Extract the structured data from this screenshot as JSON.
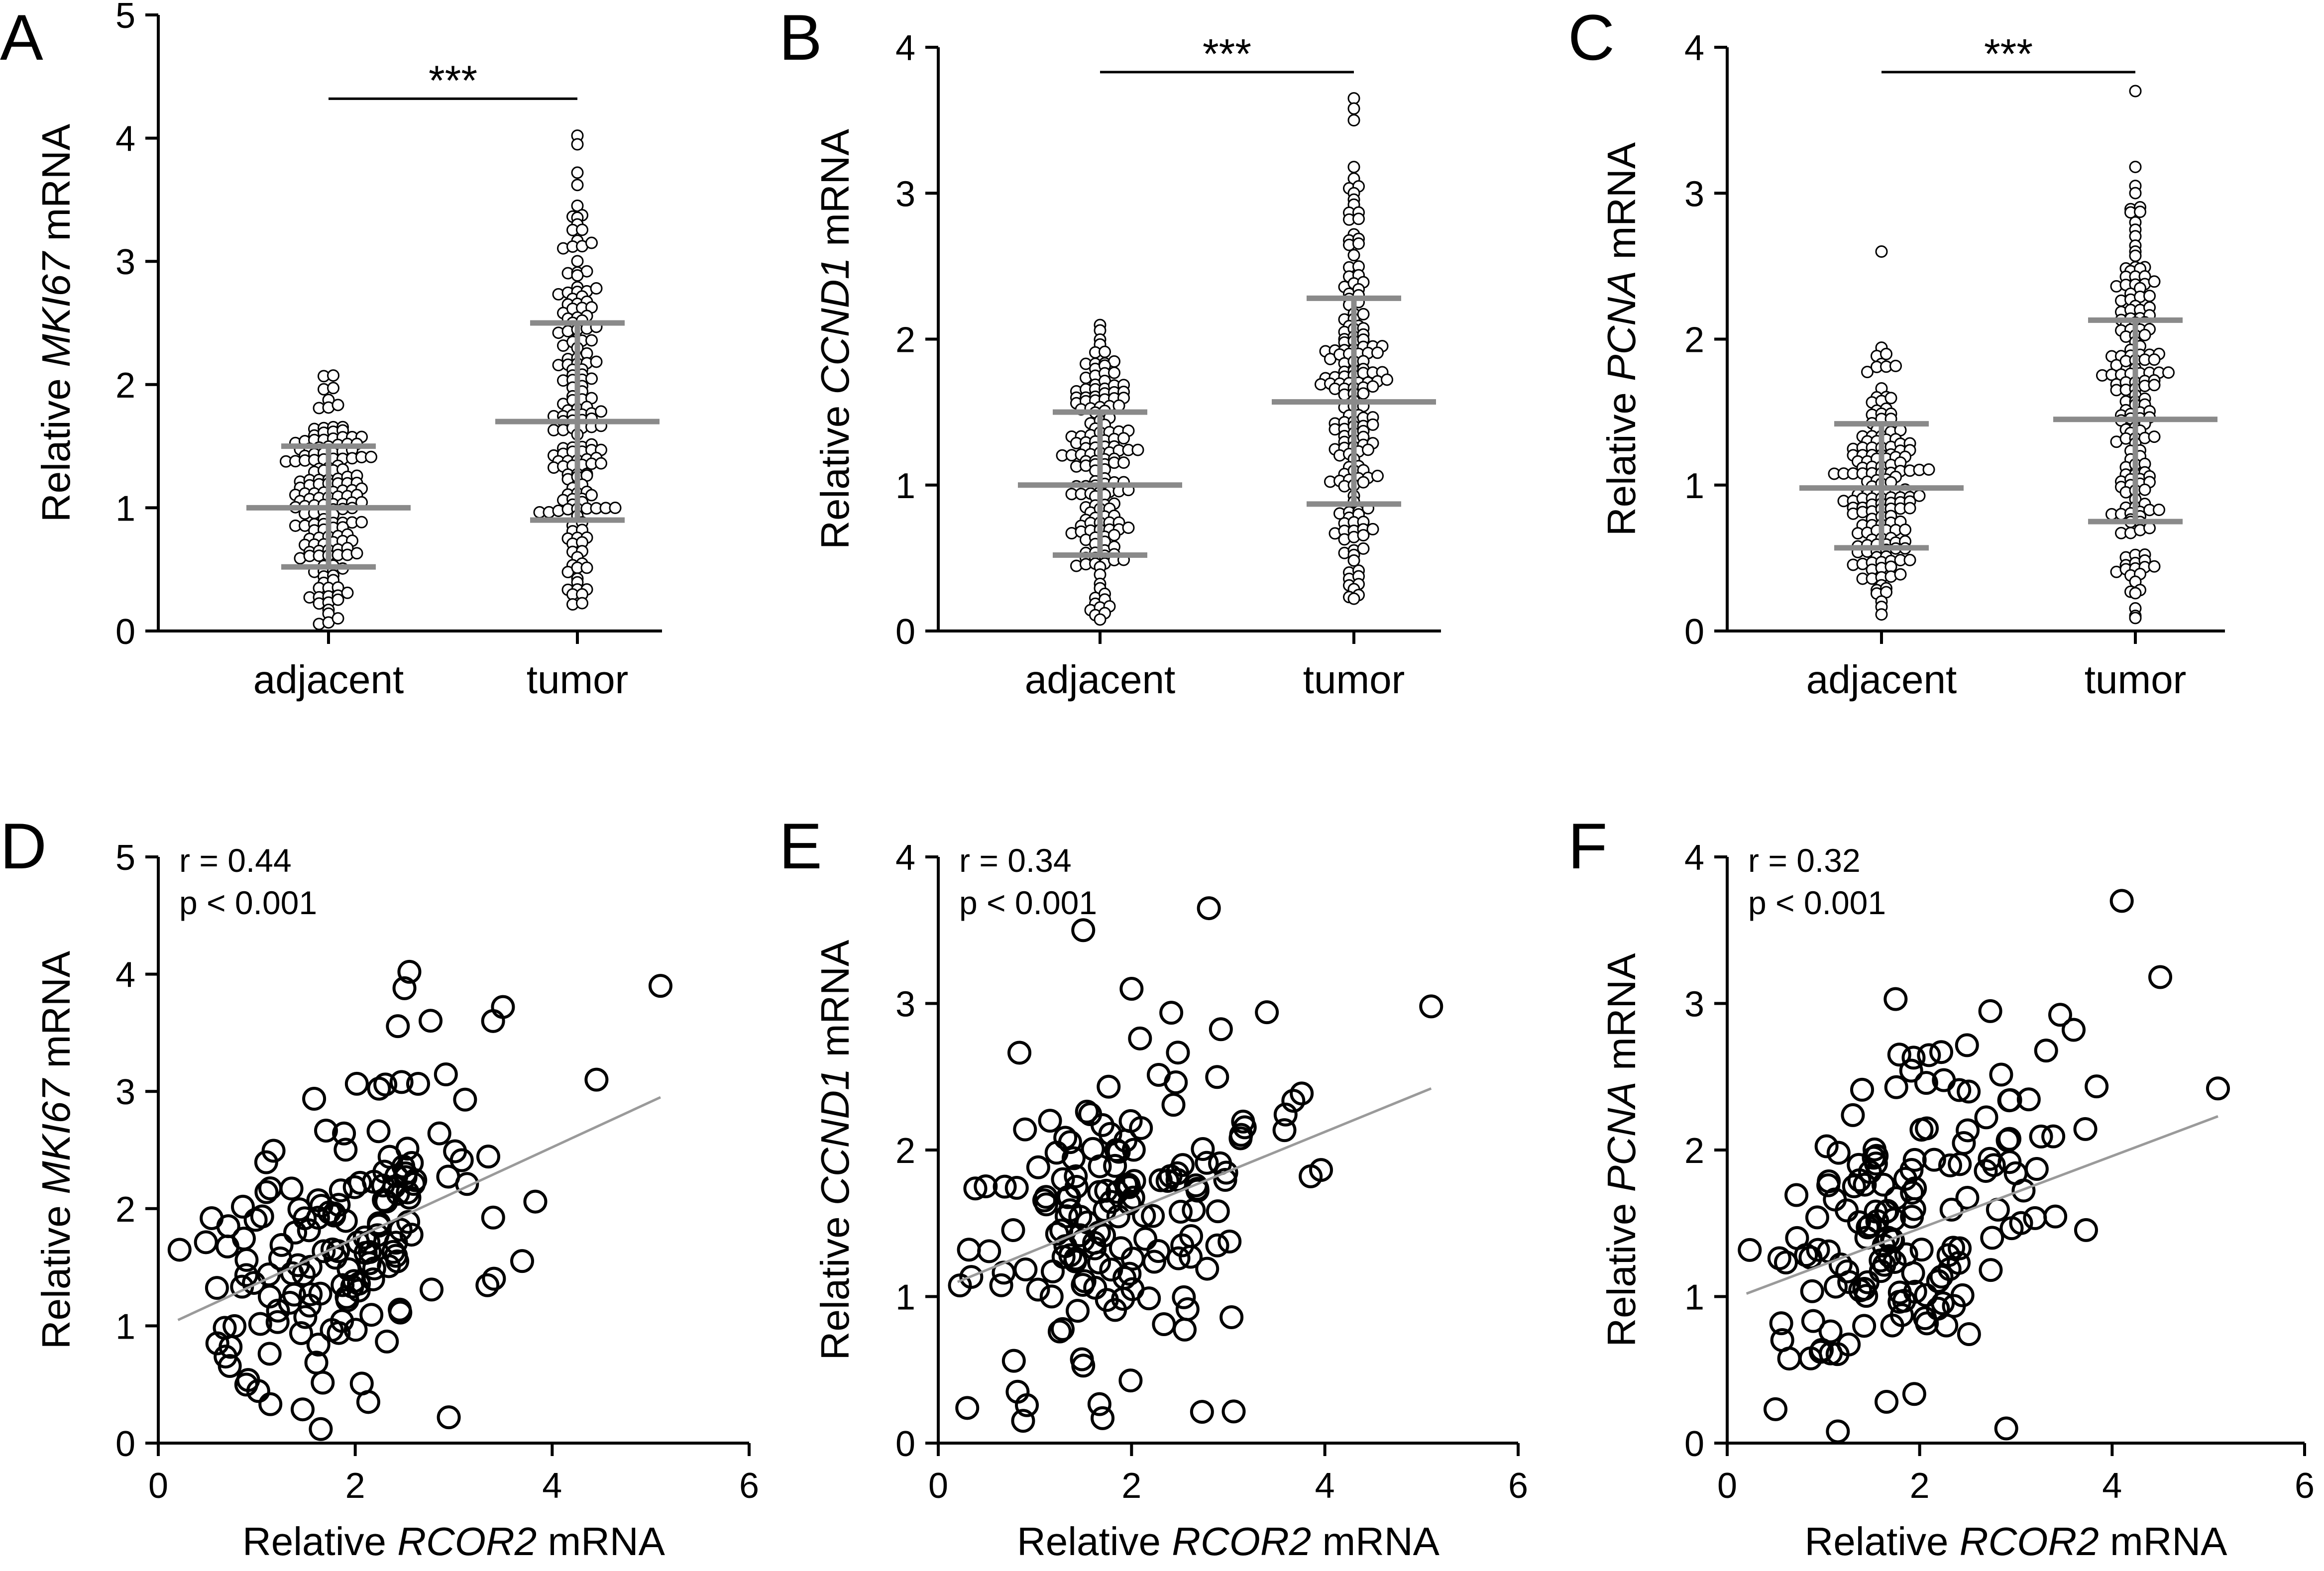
{
  "figure": {
    "description_hidden": false
  },
  "colors": {
    "summary_line": "#8a8a8a",
    "fit_line": "#9a9a9a",
    "points": "#000000"
  },
  "chart_data": [
    {
      "id": "A",
      "type": "scatter",
      "subtype": "dot-plot",
      "panel_letter": "A",
      "ylabel": {
        "prefix": "Relative ",
        "gene": "MKI67",
        "suffix": " mRNA"
      },
      "ylim": [
        0,
        5
      ],
      "yticks": [
        0,
        1,
        2,
        3,
        4,
        5
      ],
      "yticklabels": [
        "0",
        "1",
        "2",
        "3",
        "4",
        "5"
      ],
      "categories": [
        "adjacent",
        "tumor"
      ],
      "groups": [
        {
          "name": "adjacent",
          "mean": 1.0,
          "sd_low": 0.52,
          "sd_high": 1.5,
          "n": 160,
          "max": 2.22,
          "min": 0.03
        },
        {
          "name": "tumor",
          "mean": 1.7,
          "sd_low": 0.9,
          "sd_high": 2.5,
          "n": 170,
          "max": 4.02,
          "min": 0.15,
          "outliers": [
            4.02,
            3.95,
            3.72,
            3.62,
            3.15,
            3.12
          ]
        }
      ],
      "significance": "***"
    },
    {
      "id": "B",
      "type": "scatter",
      "subtype": "dot-plot",
      "panel_letter": "B",
      "ylabel": {
        "prefix": "Relative ",
        "gene": "CCND1",
        "suffix": " mRNA"
      },
      "ylim": [
        0,
        4
      ],
      "yticks": [
        0,
        1,
        2,
        3,
        4
      ],
      "yticklabels": [
        "0",
        "1",
        "2",
        "3",
        "4"
      ],
      "categories": [
        "adjacent",
        "tumor"
      ],
      "groups": [
        {
          "name": "adjacent",
          "mean": 1.0,
          "sd_low": 0.52,
          "sd_high": 1.5,
          "n": 160,
          "max": 2.26,
          "min": 0.06
        },
        {
          "name": "tumor",
          "mean": 1.57,
          "sd_low": 0.87,
          "sd_high": 2.28,
          "n": 170,
          "max": 3.65,
          "min": 0.18,
          "outliers": [
            3.65,
            3.58,
            3.5,
            3.1,
            3.0
          ]
        }
      ],
      "significance": "***"
    },
    {
      "id": "C",
      "type": "scatter",
      "subtype": "dot-plot",
      "panel_letter": "C",
      "ylabel": {
        "prefix": "Relative ",
        "gene": "PCNA",
        "suffix": " mRNA"
      },
      "ylim": [
        0,
        4
      ],
      "yticks": [
        0,
        1,
        2,
        3,
        4
      ],
      "yticklabels": [
        "0",
        "1",
        "2",
        "3",
        "4"
      ],
      "categories": [
        "adjacent",
        "tumor"
      ],
      "groups": [
        {
          "name": "adjacent",
          "mean": 0.98,
          "sd_low": 0.57,
          "sd_high": 1.42,
          "n": 160,
          "max": 2.6,
          "min": 0.1,
          "outliers": [
            2.6
          ]
        },
        {
          "name": "tumor",
          "mean": 1.45,
          "sd_low": 0.75,
          "sd_high": 2.13,
          "n": 170,
          "max": 3.7,
          "min": 0.08,
          "outliers": [
            3.7,
            3.18,
            3.05,
            2.8,
            2.75
          ]
        }
      ],
      "significance": "***"
    },
    {
      "id": "D",
      "type": "scatter",
      "subtype": "correlation",
      "panel_letter": "D",
      "xlabel": {
        "prefix": "Relative ",
        "gene": "RCOR2",
        "suffix": " mRNA"
      },
      "ylabel": {
        "prefix": "Relative ",
        "gene": "MKI67",
        "suffix": " mRNA"
      },
      "xlim": [
        0,
        6
      ],
      "xticks": [
        0,
        2,
        4,
        6
      ],
      "xticklabels": [
        "0",
        "2",
        "4",
        "6"
      ],
      "ylim": [
        0,
        5
      ],
      "yticks": [
        0,
        1,
        2,
        3,
        4,
        5
      ],
      "yticklabels": [
        "0",
        "1",
        "2",
        "3",
        "4",
        "5"
      ],
      "r_text": "r = 0.44",
      "p_text": "p < 0.001",
      "fit": {
        "x": [
          0.2,
          5.1
        ],
        "y": [
          1.05,
          2.95
        ]
      },
      "n": 160,
      "notable_points": [
        [
          5.1,
          3.9
        ],
        [
          2.55,
          4.02
        ],
        [
          2.5,
          3.88
        ],
        [
          3.5,
          3.72
        ],
        [
          3.4,
          3.6
        ],
        [
          4.45,
          3.1
        ],
        [
          2.95,
          0.22
        ],
        [
          1.65,
          0.12
        ]
      ]
    },
    {
      "id": "E",
      "type": "scatter",
      "subtype": "correlation",
      "panel_letter": "E",
      "xlabel": {
        "prefix": "Relative ",
        "gene": "RCOR2",
        "suffix": " mRNA"
      },
      "ylabel": {
        "prefix": "Relative ",
        "gene": "CCND1",
        "suffix": " mRNA"
      },
      "xlim": [
        0,
        6
      ],
      "xticks": [
        0,
        2,
        4,
        6
      ],
      "xticklabels": [
        "0",
        "2",
        "4",
        "6"
      ],
      "ylim": [
        0,
        4
      ],
      "yticks": [
        0,
        1,
        2,
        3,
        4
      ],
      "yticklabels": [
        "0",
        "1",
        "2",
        "3",
        "4"
      ],
      "r_text": "r = 0.34",
      "p_text": "p < 0.001",
      "fit": {
        "x": [
          0.2,
          5.1
        ],
        "y": [
          1.1,
          2.42
        ]
      },
      "n": 160,
      "notable_points": [
        [
          2.8,
          3.65
        ],
        [
          1.5,
          3.5
        ],
        [
          2.0,
          3.1
        ],
        [
          5.1,
          2.98
        ],
        [
          3.4,
          2.94
        ],
        [
          0.3,
          0.24
        ],
        [
          1.7,
          0.17
        ]
      ]
    },
    {
      "id": "F",
      "type": "scatter",
      "subtype": "correlation",
      "panel_letter": "F",
      "xlabel": {
        "prefix": "Relative ",
        "gene": "RCOR2",
        "suffix": " mRNA"
      },
      "ylabel": {
        "prefix": "Relative ",
        "gene": "PCNA",
        "suffix": " mRNA"
      },
      "xlim": [
        0,
        6
      ],
      "xticks": [
        0,
        2,
        4,
        6
      ],
      "xticklabels": [
        "0",
        "2",
        "4",
        "6"
      ],
      "ylim": [
        0,
        4
      ],
      "yticks": [
        0,
        1,
        2,
        3,
        4
      ],
      "yticklabels": [
        "0",
        "1",
        "2",
        "3",
        "4"
      ],
      "r_text": "r = 0.32",
      "p_text": "p < 0.001",
      "fit": {
        "x": [
          0.2,
          5.1
        ],
        "y": [
          1.02,
          2.23
        ]
      },
      "n": 160,
      "notable_points": [
        [
          4.1,
          3.7
        ],
        [
          4.5,
          3.18
        ],
        [
          1.75,
          3.03
        ],
        [
          3.6,
          2.82
        ],
        [
          5.1,
          2.42
        ],
        [
          1.15,
          0.08
        ],
        [
          2.9,
          0.1
        ]
      ]
    }
  ]
}
